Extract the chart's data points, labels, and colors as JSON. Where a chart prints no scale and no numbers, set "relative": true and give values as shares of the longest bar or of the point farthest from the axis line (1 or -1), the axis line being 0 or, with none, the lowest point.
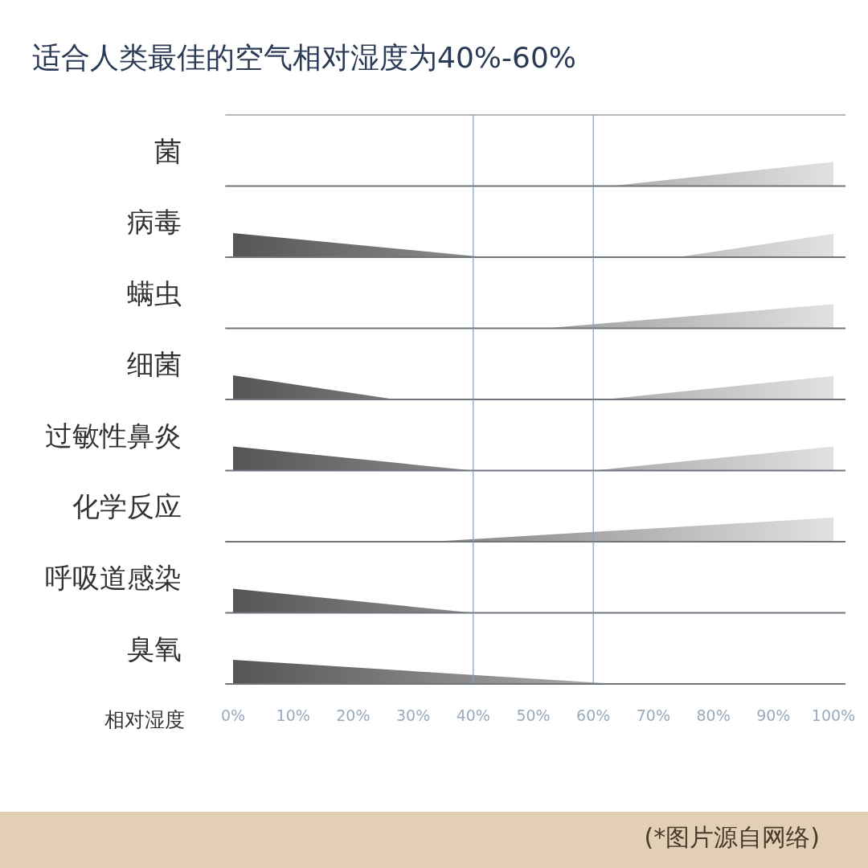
{
  "chart_data": [
    {
      "type": "area",
      "title": "适合人类最佳的空气相对湿度为40%-60%",
      "ylabel": "菌",
      "relative": true,
      "xlim": [
        -1.3,
        102
      ],
      "tick_labels": false,
      "ref_lines": [
        {
          "axis": "x",
          "value": 40,
          "color": "#8fa3b8"
        },
        {
          "axis": "x",
          "value": 60,
          "color": "#8fa3b8"
        }
      ],
      "x": [
        0,
        63,
        100
      ],
      "series": [
        {
          "color": "#9a9a9a",
          "values": [
            0,
            0,
            1
          ]
        }
      ]
    },
    {
      "type": "area",
      "ylabel": "病毒",
      "relative": true,
      "xlim": [
        -1.3,
        102
      ],
      "tick_labels": false,
      "ref_lines": [
        {
          "axis": "x",
          "value": 40,
          "color": "#8fa3b8"
        },
        {
          "axis": "x",
          "value": 60,
          "color": "#8fa3b8"
        }
      ],
      "x": [
        0,
        42,
        74,
        100
      ],
      "series": [
        {
          "color": "#9a9a9a",
          "values": [
            1,
            0,
            0,
            0.97
          ]
        }
      ]
    },
    {
      "type": "area",
      "ylabel": "螨虫",
      "relative": true,
      "xlim": [
        -1.3,
        102
      ],
      "tick_labels": false,
      "ref_lines": [
        {
          "axis": "x",
          "value": 40,
          "color": "#8fa3b8"
        },
        {
          "axis": "x",
          "value": 60,
          "color": "#8fa3b8"
        }
      ],
      "x": [
        0,
        52,
        100
      ],
      "series": [
        {
          "color": "#9a9a9a",
          "values": [
            0,
            0,
            1
          ]
        }
      ]
    },
    {
      "type": "area",
      "ylabel": "细菌",
      "relative": true,
      "xlim": [
        -1.3,
        102
      ],
      "tick_labels": false,
      "ref_lines": [
        {
          "axis": "x",
          "value": 40,
          "color": "#8fa3b8"
        },
        {
          "axis": "x",
          "value": 60,
          "color": "#8fa3b8"
        }
      ],
      "x": [
        0,
        27,
        62,
        100
      ],
      "series": [
        {
          "color": "#9a9a9a",
          "values": [
            1,
            0,
            0,
            0.97
          ]
        }
      ]
    },
    {
      "type": "area",
      "ylabel": "过敏性鼻炎",
      "relative": true,
      "xlim": [
        -1.3,
        102
      ],
      "tick_labels": false,
      "ref_lines": [
        {
          "axis": "x",
          "value": 40,
          "color": "#8fa3b8"
        },
        {
          "axis": "x",
          "value": 60,
          "color": "#8fa3b8"
        }
      ],
      "x": [
        0,
        40,
        60,
        100
      ],
      "series": [
        {
          "color": "#9a9a9a",
          "values": [
            1,
            0,
            0,
            1
          ]
        }
      ]
    },
    {
      "type": "area",
      "ylabel": "化学反应",
      "relative": true,
      "xlim": [
        -1.3,
        102
      ],
      "tick_labels": false,
      "ref_lines": [
        {
          "axis": "x",
          "value": 40,
          "color": "#8fa3b8"
        },
        {
          "axis": "x",
          "value": 60,
          "color": "#8fa3b8"
        }
      ],
      "x": [
        0,
        33,
        100
      ],
      "series": [
        {
          "color": "#9a9a9a",
          "values": [
            0,
            0,
            1
          ]
        }
      ]
    },
    {
      "type": "area",
      "ylabel": "呼吸道感染",
      "relative": true,
      "xlim": [
        -1.3,
        102
      ],
      "tick_labels": false,
      "ref_lines": [
        {
          "axis": "x",
          "value": 40,
          "color": "#8fa3b8"
        },
        {
          "axis": "x",
          "value": 60,
          "color": "#8fa3b8"
        }
      ],
      "x": [
        0,
        40,
        100
      ],
      "series": [
        {
          "color": "#9a9a9a",
          "values": [
            1,
            0,
            0
          ]
        }
      ]
    },
    {
      "type": "area",
      "ylabel": "臭氧",
      "xlabel": "相对湿度",
      "relative": true,
      "xlim": [
        -1.3,
        102
      ],
      "tick_labels": "x",
      "ref_lines": [
        {
          "axis": "x",
          "value": 40,
          "color": "#8fa3b8"
        },
        {
          "axis": "x",
          "value": 60,
          "color": "#8fa3b8"
        }
      ],
      "xticks": [
        {
          "value": 0,
          "label": "0%"
        },
        {
          "value": 10,
          "label": "10%"
        },
        {
          "value": 20,
          "label": "20%"
        },
        {
          "value": 30,
          "label": "30%"
        },
        {
          "value": 40,
          "label": "40%"
        },
        {
          "value": 50,
          "label": "50%"
        },
        {
          "value": 60,
          "label": "60%"
        },
        {
          "value": 70,
          "label": "70%"
        },
        {
          "value": 80,
          "label": "80%"
        },
        {
          "value": 90,
          "label": "90%"
        },
        {
          "value": 100,
          "label": "100%"
        }
      ],
      "annotations": [
        "(*图片源自网络)"
      ],
      "x": [
        0,
        64,
        100
      ],
      "series": [
        {
          "color": "#9a9a9a",
          "values": [
            1,
            0,
            0
          ]
        }
      ]
    }
  ]
}
